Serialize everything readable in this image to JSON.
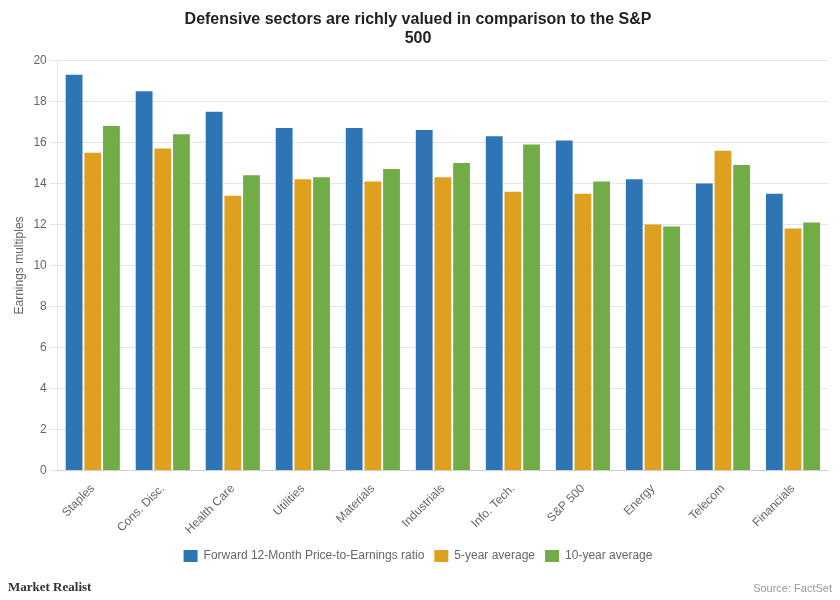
{
  "chart_data": {
    "type": "bar",
    "title": "Defensive sectors are richly valued in comparison to the S&P\n500",
    "ylabel": "Earnings multiples",
    "categories": [
      "Staples",
      "Cons. Disc.",
      "Health Care",
      "Utilities",
      "Materials",
      "Industrials",
      "Info. Tech.",
      "S&P 500",
      "Energy",
      "Telecom",
      "Financials"
    ],
    "series": [
      {
        "name": "Forward 12-Month Price-to-Earnings ratio",
        "color": "#2E75B6",
        "values": [
          19.3,
          18.5,
          17.5,
          16.7,
          16.7,
          16.6,
          16.3,
          16.1,
          14.2,
          14.0,
          13.5
        ]
      },
      {
        "name": "5-year average",
        "color": "#DFA020",
        "values": [
          15.5,
          15.7,
          13.4,
          14.2,
          14.1,
          14.3,
          13.6,
          13.5,
          12.0,
          15.6,
          11.8
        ]
      },
      {
        "name": "10-year average",
        "color": "#70AD47",
        "values": [
          16.8,
          16.4,
          14.4,
          14.3,
          14.7,
          15.0,
          15.9,
          14.1,
          11.9,
          14.9,
          12.1
        ]
      }
    ],
    "ylim": [
      0,
      20
    ],
    "yticks": [
      0,
      2,
      4,
      6,
      8,
      10,
      12,
      14,
      16,
      18,
      20
    ],
    "grid": true,
    "legend": "bottom",
    "annotations": [
      "Market Realist",
      "Source: FactSet"
    ]
  }
}
